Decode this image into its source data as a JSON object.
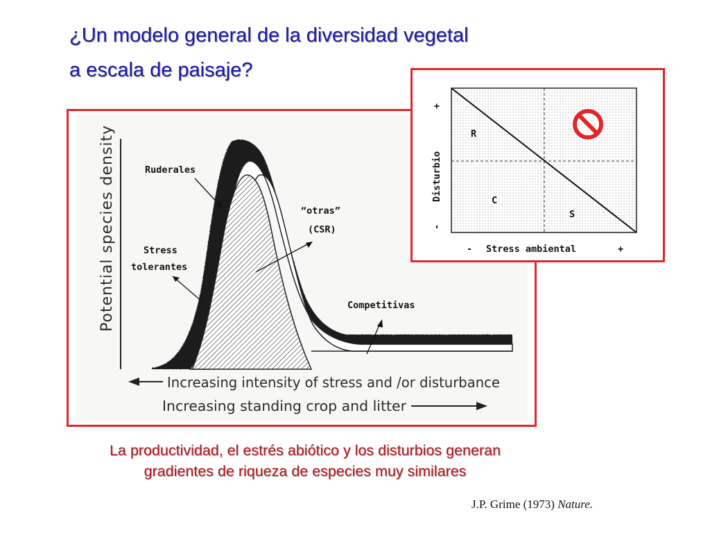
{
  "slide": {
    "title_line1": "¿Un modelo general de la diversidad vegetal",
    "title_line2": "a escala de paisaje?",
    "caption_line1": "La productividad, el estrés abiótico y los disturbios generan",
    "caption_line2": "gradientes de riqueza de especies muy similares",
    "citation_prefix": "J.P. Grime (1973) ",
    "citation_journal": "Nature."
  },
  "figure": {
    "y_axis_label": "Potential species density",
    "arrow_left_label": "Increasing intensity of stress and /or disturbance",
    "arrow_right_label": "Increasing standing crop and litter",
    "annotations": {
      "ruderales": "Ruderales",
      "stress_line1": "Stress",
      "stress_line2": "tolerantes",
      "otras_line1": "“otras”",
      "otras_line2": "(CSR)",
      "competitivas": "Competitivas"
    }
  },
  "csr_diagram": {
    "y_axis_label": "Disturbio",
    "y_plus": "+",
    "y_minus": "-",
    "x_axis_label": "Stress ambiental",
    "x_minus": "-",
    "x_plus": "+",
    "label_r": "R",
    "label_c": "C",
    "label_s": "S",
    "prohibited_icon": "no-entry-icon",
    "colors": {
      "no_entry": "#e0262b"
    }
  },
  "colors": {
    "title": "#1a1aa8",
    "caption": "#b3161b",
    "frame": "#e0262b"
  }
}
